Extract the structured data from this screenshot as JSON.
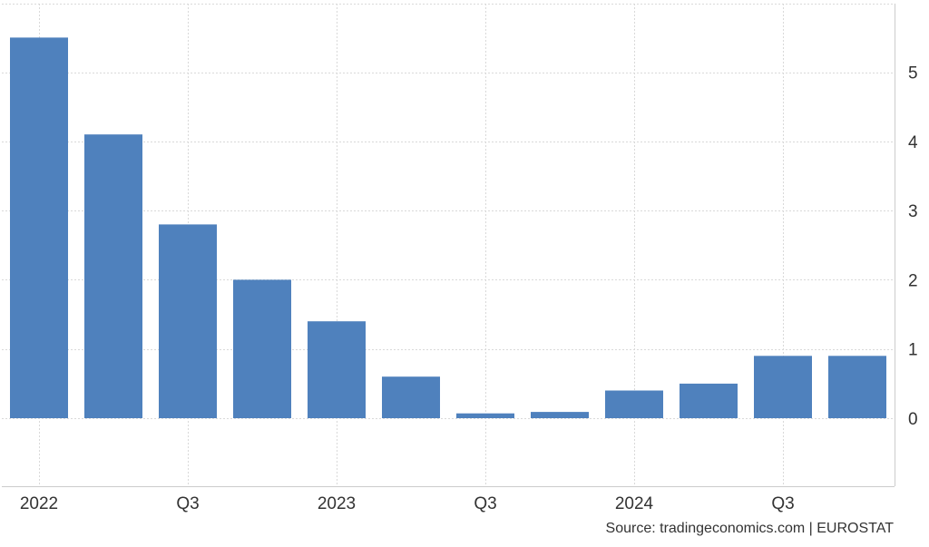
{
  "chart_data": {
    "type": "bar",
    "categories": [
      "2022 Q1",
      "2022 Q2",
      "2022 Q3",
      "2022 Q4",
      "2023 Q1",
      "2023 Q2",
      "2023 Q3",
      "2023 Q4",
      "2024 Q1",
      "2024 Q2",
      "2024 Q3",
      "2024 Q4"
    ],
    "values": [
      5.5,
      4.1,
      2.8,
      2.0,
      1.4,
      0.6,
      0.07,
      0.09,
      0.4,
      0.5,
      0.9,
      0.9
    ],
    "ylim": [
      -1,
      6
    ],
    "yticks": [
      0,
      1,
      2,
      3,
      4,
      5
    ],
    "xtick_labels": [
      {
        "index": 0,
        "label": "2022"
      },
      {
        "index": 2,
        "label": "Q3"
      },
      {
        "index": 4,
        "label": "2023"
      },
      {
        "index": 6,
        "label": "Q3"
      },
      {
        "index": 8,
        "label": "2024"
      },
      {
        "index": 10,
        "label": "Q3"
      }
    ],
    "y_axis_position": "right",
    "grid": true,
    "bar_color": "#4f81bd"
  },
  "source": "Source: tradingeconomics.com | EUROSTAT"
}
